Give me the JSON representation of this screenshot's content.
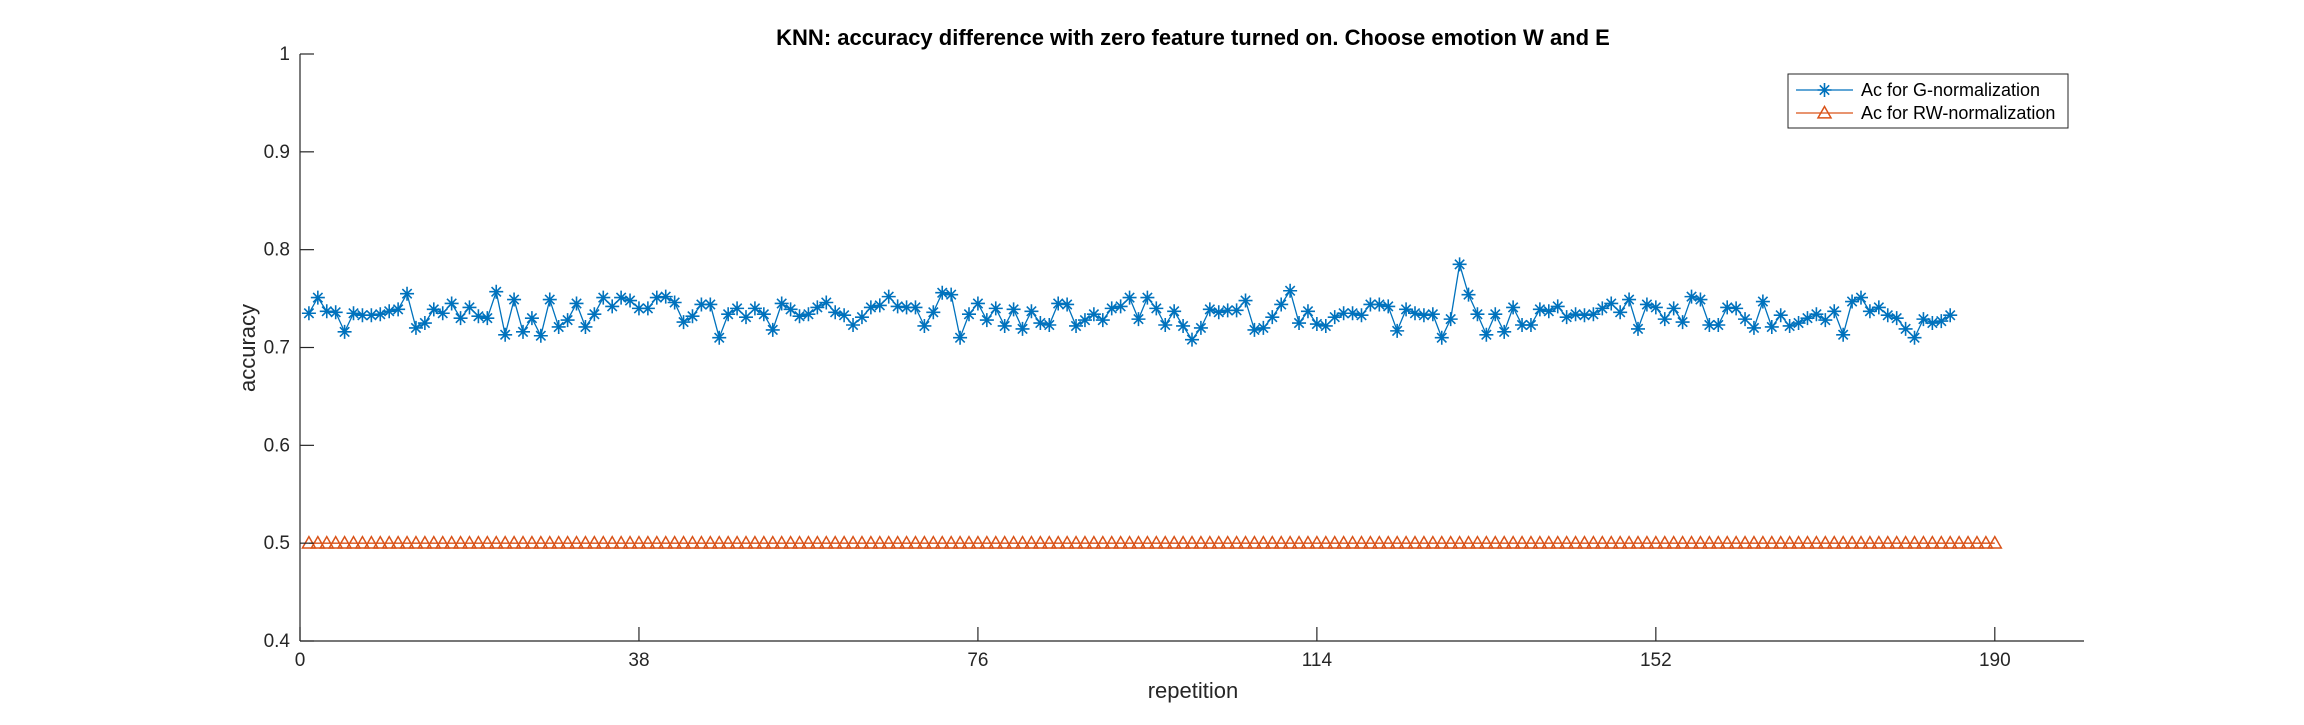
{
  "colors": {
    "g_series": "#0072BD",
    "rw_series": "#D95319",
    "axis": "#262626",
    "background": "#ffffff"
  },
  "chart_data": {
    "type": "line",
    "title": "KNN: accuracy difference with zero feature turned on. Choose emotion W and E",
    "xlabel": "repetition",
    "ylabel": "accuracy",
    "xlim": [
      0,
      200
    ],
    "ylim": [
      0.4,
      1
    ],
    "xticks": [
      0,
      38,
      76,
      114,
      152,
      190
    ],
    "yticks": [
      0.4,
      0.5,
      0.6,
      0.7,
      0.8,
      0.9,
      1
    ],
    "ytick_labels": [
      "0.4",
      "0.5",
      "0.6",
      "0.7",
      "0.8",
      "0.9",
      "1"
    ],
    "grid": false,
    "legend_location": "top-right",
    "series": [
      {
        "name": "Ac for G-normalization",
        "marker": "asterisk",
        "values": [
          0.735,
          0.751,
          0.737,
          0.736,
          0.716,
          0.735,
          0.733,
          0.733,
          0.734,
          0.737,
          0.739,
          0.755,
          0.72,
          0.725,
          0.739,
          0.735,
          0.745,
          0.73,
          0.741,
          0.732,
          0.73,
          0.757,
          0.713,
          0.749,
          0.716,
          0.73,
          0.712,
          0.749,
          0.721,
          0.728,
          0.745,
          0.721,
          0.734,
          0.751,
          0.742,
          0.751,
          0.748,
          0.74,
          0.74,
          0.751,
          0.752,
          0.746,
          0.726,
          0.732,
          0.744,
          0.744,
          0.71,
          0.734,
          0.74,
          0.731,
          0.74,
          0.734,
          0.718,
          0.745,
          0.739,
          0.732,
          0.734,
          0.741,
          0.746,
          0.736,
          0.733,
          0.723,
          0.731,
          0.741,
          0.743,
          0.752,
          0.742,
          0.741,
          0.741,
          0.722,
          0.736,
          0.756,
          0.754,
          0.71,
          0.734,
          0.745,
          0.728,
          0.74,
          0.722,
          0.739,
          0.719,
          0.737,
          0.725,
          0.723,
          0.745,
          0.744,
          0.722,
          0.728,
          0.734,
          0.728,
          0.74,
          0.742,
          0.751,
          0.729,
          0.751,
          0.74,
          0.723,
          0.737,
          0.722,
          0.708,
          0.72,
          0.739,
          0.736,
          0.738,
          0.738,
          0.748,
          0.718,
          0.72,
          0.731,
          0.744,
          0.758,
          0.725,
          0.737,
          0.724,
          0.722,
          0.731,
          0.735,
          0.735,
          0.733,
          0.744,
          0.744,
          0.742,
          0.717,
          0.739,
          0.735,
          0.733,
          0.734,
          0.71,
          0.729,
          0.785,
          0.754,
          0.734,
          0.713,
          0.734,
          0.716,
          0.741,
          0.723,
          0.723,
          0.739,
          0.737,
          0.742,
          0.731,
          0.734,
          0.733,
          0.734,
          0.74,
          0.745,
          0.736,
          0.749,
          0.719,
          0.744,
          0.741,
          0.729,
          0.74,
          0.726,
          0.752,
          0.749,
          0.723,
          0.723,
          0.741,
          0.74,
          0.729,
          0.72,
          0.747,
          0.721,
          0.733,
          0.722,
          0.725,
          0.73,
          0.734,
          0.728,
          0.737,
          0.713,
          0.747,
          0.751,
          0.737,
          0.741,
          0.733,
          0.73,
          0.719,
          0.71,
          0.729,
          0.725,
          0.727,
          0.733
        ]
      },
      {
        "name": "Ac for RW-normalization",
        "marker": "triangle",
        "values": [
          0.5,
          0.5,
          0.5,
          0.5,
          0.5,
          0.5,
          0.5,
          0.5,
          0.5,
          0.5,
          0.5,
          0.5,
          0.5,
          0.5,
          0.5,
          0.5,
          0.5,
          0.5,
          0.5,
          0.5,
          0.5,
          0.5,
          0.5,
          0.5,
          0.5,
          0.5,
          0.5,
          0.5,
          0.5,
          0.5,
          0.5,
          0.5,
          0.5,
          0.5,
          0.5,
          0.5,
          0.5,
          0.5,
          0.5,
          0.5,
          0.5,
          0.5,
          0.5,
          0.5,
          0.5,
          0.5,
          0.5,
          0.5,
          0.5,
          0.5,
          0.5,
          0.5,
          0.5,
          0.5,
          0.5,
          0.5,
          0.5,
          0.5,
          0.5,
          0.5,
          0.5,
          0.5,
          0.5,
          0.5,
          0.5,
          0.5,
          0.5,
          0.5,
          0.5,
          0.5,
          0.5,
          0.5,
          0.5,
          0.5,
          0.5,
          0.5,
          0.5,
          0.5,
          0.5,
          0.5,
          0.5,
          0.5,
          0.5,
          0.5,
          0.5,
          0.5,
          0.5,
          0.5,
          0.5,
          0.5,
          0.5,
          0.5,
          0.5,
          0.5,
          0.5,
          0.5,
          0.5,
          0.5,
          0.5,
          0.5,
          0.5,
          0.5,
          0.5,
          0.5,
          0.5,
          0.5,
          0.5,
          0.5,
          0.5,
          0.5,
          0.5,
          0.5,
          0.5,
          0.5,
          0.5,
          0.5,
          0.5,
          0.5,
          0.5,
          0.5,
          0.5,
          0.5,
          0.5,
          0.5,
          0.5,
          0.5,
          0.5,
          0.5,
          0.5,
          0.5,
          0.5,
          0.5,
          0.5,
          0.5,
          0.5,
          0.5,
          0.5,
          0.5,
          0.5,
          0.5,
          0.5,
          0.5,
          0.5,
          0.5,
          0.5,
          0.5,
          0.5,
          0.5,
          0.5,
          0.5,
          0.5,
          0.5,
          0.5,
          0.5,
          0.5,
          0.5,
          0.5,
          0.5,
          0.5,
          0.5,
          0.5,
          0.5,
          0.5,
          0.5,
          0.5,
          0.5,
          0.5,
          0.5,
          0.5,
          0.5,
          0.5,
          0.5,
          0.5,
          0.5,
          0.5,
          0.5,
          0.5,
          0.5,
          0.5,
          0.5,
          0.5,
          0.5,
          0.5,
          0.5,
          0.5,
          0.5,
          0.5,
          0.5,
          0.5,
          0.5
        ]
      }
    ]
  }
}
